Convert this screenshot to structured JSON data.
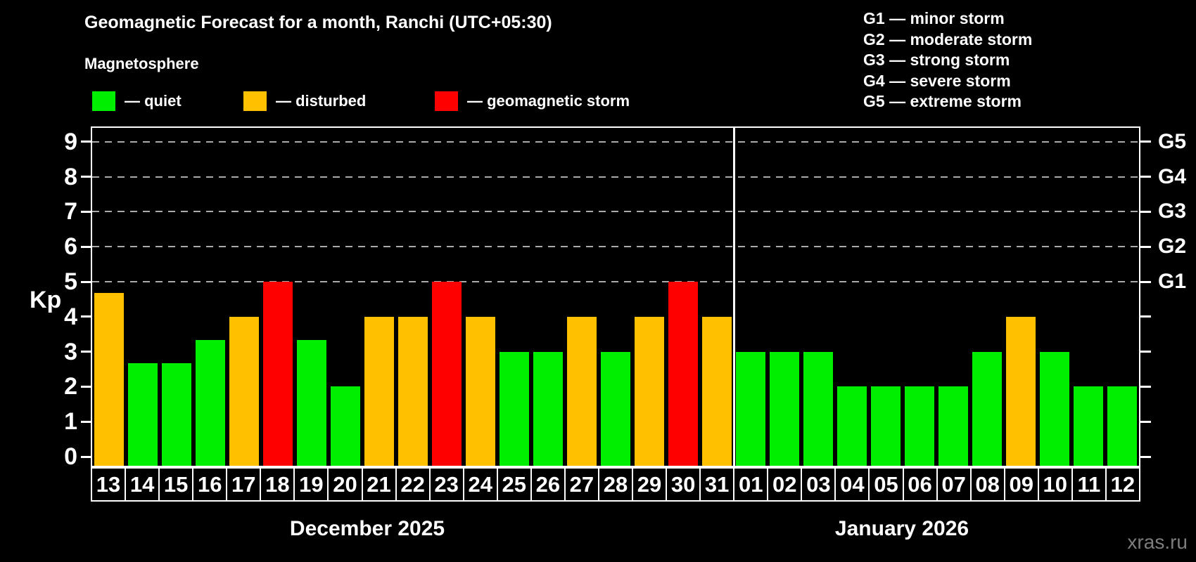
{
  "title": "Geomagnetic Forecast for a month, Ranchi (UTC+05:30)",
  "subtitle": "Magnetosphere",
  "legend": {
    "items": [
      {
        "name": "quiet",
        "label": "— quiet",
        "color": "#00ee00"
      },
      {
        "name": "disturbed",
        "label": "— disturbed",
        "color": "#ffc000"
      },
      {
        "name": "storm",
        "label": "— geomagnetic storm",
        "color": "#ff0000"
      }
    ]
  },
  "g_legend": {
    "items": [
      "G1 — minor storm",
      "G2 — moderate storm",
      "G3 — strong storm",
      "G4 — severe storm",
      "G5 — extreme storm"
    ]
  },
  "watermark": "xras.ru",
  "chart_data": {
    "type": "bar",
    "title": "Geomagnetic Forecast for a month, Ranchi (UTC+05:30)",
    "ylabel": "Kp",
    "ylim": [
      0,
      9
    ],
    "yticks": [
      0,
      1,
      2,
      3,
      4,
      5,
      6,
      7,
      8,
      9
    ],
    "gridlines_at": [
      5,
      6,
      7,
      8,
      9
    ],
    "grid": "dashed-horizontal",
    "legend_position": "top",
    "right_axis_labels": [
      {
        "label": "G1",
        "value": 5
      },
      {
        "label": "G2",
        "value": 6
      },
      {
        "label": "G3",
        "value": 7
      },
      {
        "label": "G4",
        "value": 8
      },
      {
        "label": "G5",
        "value": 9
      }
    ],
    "status_colors": {
      "quiet": "#00ee00",
      "disturbed": "#ffc000",
      "storm": "#ff0000"
    },
    "groups": [
      {
        "label": "December 2025",
        "bars": [
          {
            "day": "13",
            "kp": 4.67,
            "status": "disturbed"
          },
          {
            "day": "14",
            "kp": 2.67,
            "status": "quiet"
          },
          {
            "day": "15",
            "kp": 2.67,
            "status": "quiet"
          },
          {
            "day": "16",
            "kp": 3.33,
            "status": "quiet"
          },
          {
            "day": "17",
            "kp": 4,
            "status": "disturbed"
          },
          {
            "day": "18",
            "kp": 5,
            "status": "storm"
          },
          {
            "day": "19",
            "kp": 3.33,
            "status": "quiet"
          },
          {
            "day": "20",
            "kp": 2,
            "status": "quiet"
          },
          {
            "day": "21",
            "kp": 4,
            "status": "disturbed"
          },
          {
            "day": "22",
            "kp": 4,
            "status": "disturbed"
          },
          {
            "day": "23",
            "kp": 5,
            "status": "storm"
          },
          {
            "day": "24",
            "kp": 4,
            "status": "disturbed"
          },
          {
            "day": "25",
            "kp": 3,
            "status": "quiet"
          },
          {
            "day": "26",
            "kp": 3,
            "status": "quiet"
          },
          {
            "day": "27",
            "kp": 4,
            "status": "disturbed"
          },
          {
            "day": "28",
            "kp": 3,
            "status": "quiet"
          },
          {
            "day": "29",
            "kp": 4,
            "status": "disturbed"
          },
          {
            "day": "30",
            "kp": 5,
            "status": "storm"
          },
          {
            "day": "31",
            "kp": 4,
            "status": "disturbed"
          }
        ]
      },
      {
        "label": "January 2026",
        "bars": [
          {
            "day": "01",
            "kp": 3,
            "status": "quiet"
          },
          {
            "day": "02",
            "kp": 3,
            "status": "quiet"
          },
          {
            "day": "03",
            "kp": 3,
            "status": "quiet"
          },
          {
            "day": "04",
            "kp": 2,
            "status": "quiet"
          },
          {
            "day": "05",
            "kp": 2,
            "status": "quiet"
          },
          {
            "day": "06",
            "kp": 2,
            "status": "quiet"
          },
          {
            "day": "07",
            "kp": 2,
            "status": "quiet"
          },
          {
            "day": "08",
            "kp": 3,
            "status": "quiet"
          },
          {
            "day": "09",
            "kp": 4,
            "status": "disturbed"
          },
          {
            "day": "10",
            "kp": 3,
            "status": "quiet"
          },
          {
            "day": "11",
            "kp": 2,
            "status": "quiet"
          },
          {
            "day": "12",
            "kp": 2,
            "status": "quiet"
          }
        ]
      }
    ]
  }
}
